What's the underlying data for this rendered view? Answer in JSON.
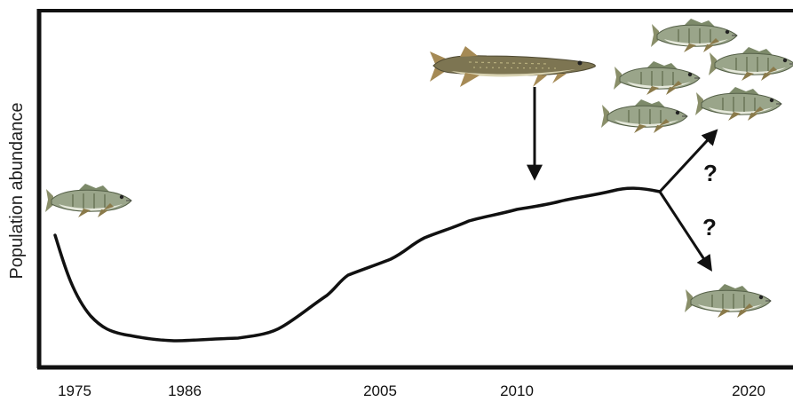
{
  "y_axis_label": "Population abundance",
  "x_ticks": [
    "1975",
    "1986",
    "2005",
    "2010",
    "2020"
  ],
  "question_marks": [
    "?",
    "?"
  ],
  "icons": {
    "fish": "perch-fish-icon",
    "predator": "pike-fish-icon"
  },
  "colors": {
    "line": "#111111",
    "fish_body": "#9aa58a",
    "fish_belly": "#e6e9dc",
    "fish_fin": "#8a7a4a",
    "pike_body": "#7d7552",
    "pike_fin": "#a58a55"
  }
}
